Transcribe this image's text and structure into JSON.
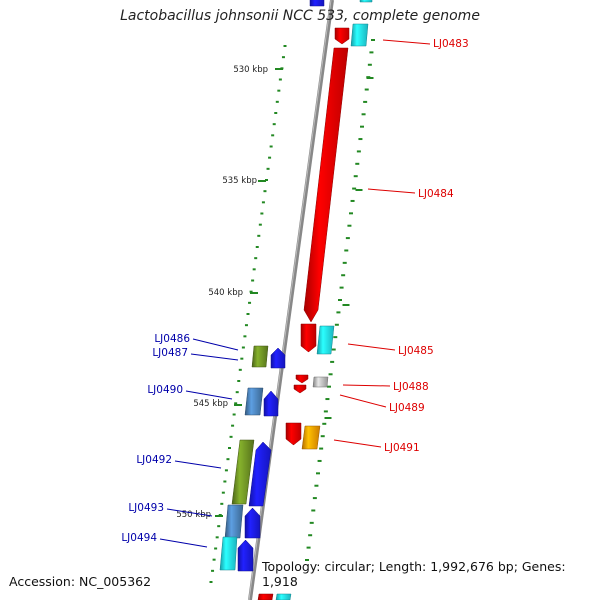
{
  "title": "Lactobacillus johnsonii NCC 533, complete genome",
  "footer": {
    "accession": "Accession: NC_005362",
    "topology": "Topology: circular; Length: 1,992,676 bp; Genes: 1,918"
  },
  "colors": {
    "backbone": "#888888",
    "forward_red": "#ee0000",
    "cyan": "#22e0ee",
    "blue": "#1a1aee",
    "olive": "#6b8e23",
    "steel_blue": "#4a7fb5",
    "orange": "#ff9a00",
    "gray": "#b8b8b8",
    "tick": "#228822",
    "label_red": "#dd0000",
    "label_blue": "#0000aa"
  },
  "scale_labels": [
    "530 kbp",
    "535 kbp",
    "540 kbp",
    "545 kbp",
    "550 kbp"
  ],
  "gene_labels": [
    {
      "name": "LJ0483",
      "color": "red"
    },
    {
      "name": "LJ0484",
      "color": "red"
    },
    {
      "name": "LJ0485",
      "color": "red"
    },
    {
      "name": "LJ0488",
      "color": "red"
    },
    {
      "name": "LJ0489",
      "color": "red"
    },
    {
      "name": "LJ0491",
      "color": "red"
    },
    {
      "name": "LJ0486",
      "color": "blue"
    },
    {
      "name": "LJ0487",
      "color": "blue"
    },
    {
      "name": "LJ0490",
      "color": "blue"
    },
    {
      "name": "LJ0492",
      "color": "blue"
    },
    {
      "name": "LJ0493",
      "color": "blue"
    },
    {
      "name": "LJ0494",
      "color": "blue"
    }
  ]
}
